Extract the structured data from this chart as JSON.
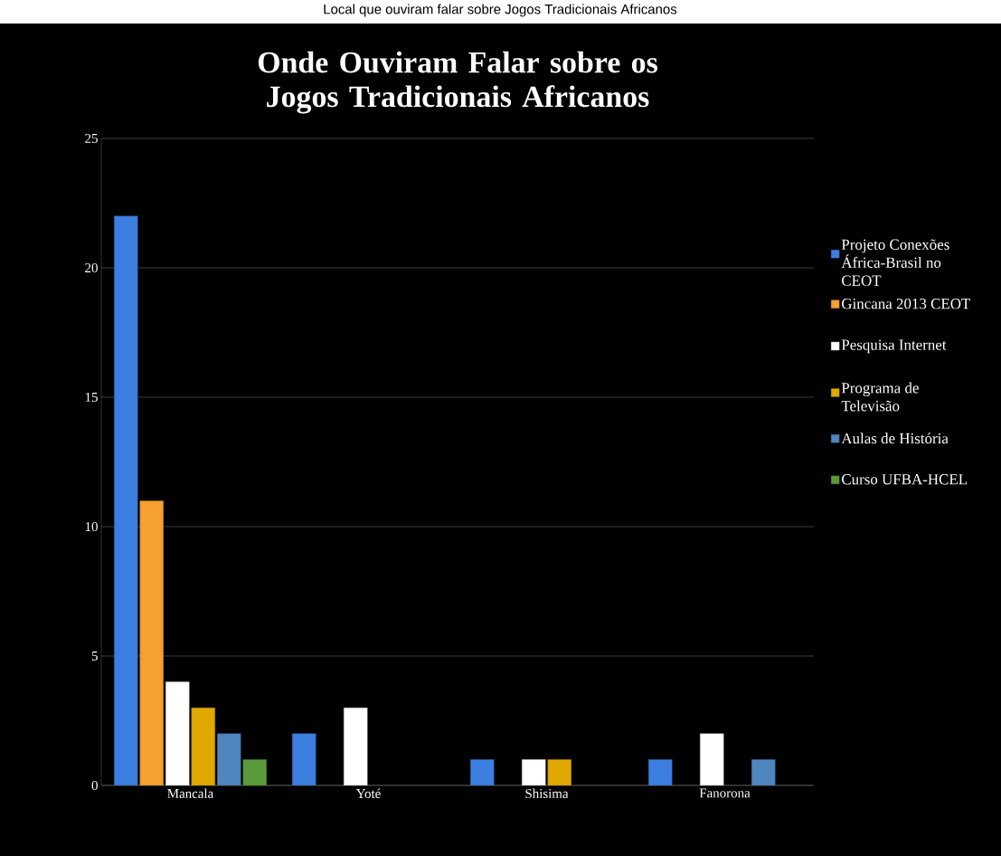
{
  "chart_data": {
    "type": "bar",
    "title": "Onde Ouviram Falar sobre os Jogos Tradicionais Africanos",
    "annotations": [
      "Local que ouviram falar sobre Jogos Tradicionais Africanos"
    ],
    "categories": [
      "Mancala",
      "Yoté",
      "Shisima",
      "Fanorona"
    ],
    "series": [
      {
        "name": "Projeto Conexões África-Brasil no CEOT",
        "color": "#3d7fe0",
        "values": [
          22,
          2,
          1,
          1
        ]
      },
      {
        "name": "Gincana 2013 CEOT",
        "color": "#f5a030",
        "values": [
          11,
          null,
          null,
          null
        ]
      },
      {
        "name": "Pesquisa Internet",
        "color": "#ffffff",
        "values": [
          4,
          3,
          1,
          2
        ]
      },
      {
        "name": "Programa de Televisão",
        "color": "#e0a800",
        "values": [
          3,
          null,
          1,
          null
        ]
      },
      {
        "name": "Aulas de História",
        "color": "#4f86c0",
        "values": [
          2,
          null,
          null,
          1
        ]
      },
      {
        "name": "Curso UFBA-HCEL",
        "color": "#5a9a3a",
        "values": [
          1,
          null,
          null,
          null
        ]
      }
    ],
    "ylim": [
      0,
      25
    ],
    "yticks": [
      0,
      5,
      10,
      15,
      20,
      25
    ],
    "grid": "y",
    "legend": "right"
  }
}
